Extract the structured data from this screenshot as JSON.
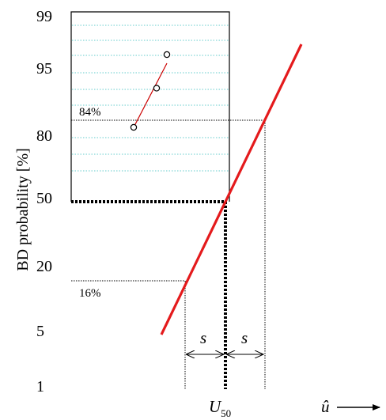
{
  "chart_data": {
    "type": "line",
    "title": "",
    "xlabel": "û",
    "ylabel": "BD probability [%]",
    "y_scale": "normal-probability",
    "y_ticks": [
      "99",
      "95",
      "80",
      "50",
      "20",
      "5",
      "1"
    ],
    "grid": "dotted cyan gridlines inside the upper box",
    "colors": {
      "fit_line": "#e41a1c",
      "sample_fit": "#cc0000",
      "grid": "#66cccc"
    },
    "series": [
      {
        "probabilities": [
          84,
          91,
          97
        ]
      }
    ],
    "annotations": {
      "p84_label": "84%",
      "p16_label": "16%",
      "s_label": "s",
      "u50_label": "U",
      "u50_subscript": "50"
    }
  }
}
